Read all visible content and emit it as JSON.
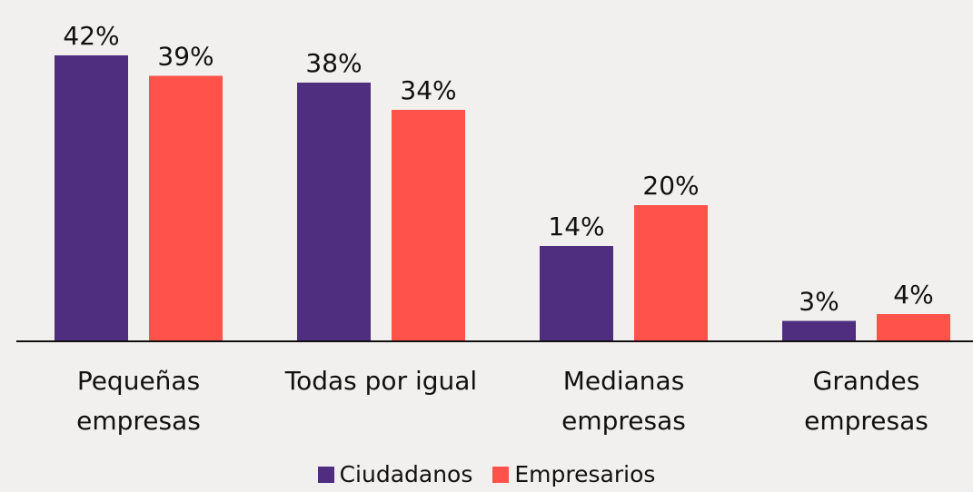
{
  "chart_data": {
    "type": "bar",
    "categories": [
      "Pequeñas\nempresas",
      "Todas por igual",
      "Medianas\nempresas",
      "Grandes\nempresas"
    ],
    "series": [
      {
        "name": "Ciudadanos",
        "color": "#4f2d7f",
        "values": [
          42,
          38,
          14,
          3
        ],
        "value_labels": [
          "42%",
          "38%",
          "14%",
          "3%"
        ]
      },
      {
        "name": "Empresarios",
        "color": "#ff524b",
        "values": [
          39,
          34,
          20,
          4
        ],
        "value_labels": [
          "39%",
          "34%",
          "20%",
          "4%"
        ]
      }
    ]
  }
}
